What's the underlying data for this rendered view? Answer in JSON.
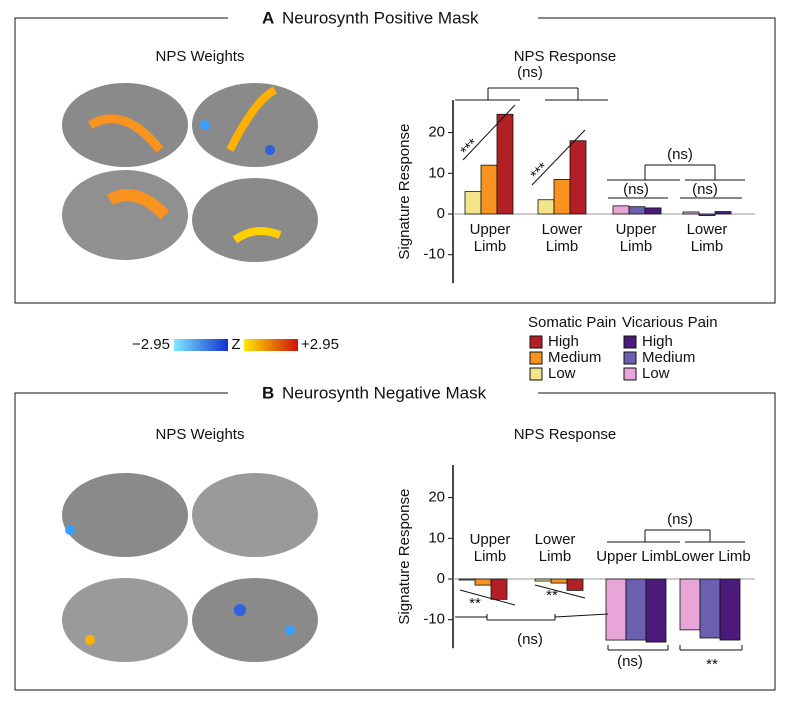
{
  "panels": [
    {
      "letter": "A",
      "title": "Neurosynth Positive Mask",
      "weights_title": "NPS Weights",
      "response_title": "NPS Response"
    },
    {
      "letter": "B",
      "title": "Neurosynth Negative Mask",
      "weights_title": "NPS Weights",
      "response_title": "NPS Response"
    }
  ],
  "colorbar": {
    "min_label": "−2.95",
    "z_label": "Z",
    "max_label": "+2.95"
  },
  "legend": [
    {
      "title": "Somatic Pain",
      "items": [
        {
          "label": "High",
          "color": "#b22025"
        },
        {
          "label": "Medium",
          "color": "#f7931e"
        },
        {
          "label": "Low",
          "color": "#f2e58a"
        }
      ]
    },
    {
      "title": "Vicarious Pain",
      "items": [
        {
          "label": "High",
          "color": "#4b1a7a"
        },
        {
          "label": "Medium",
          "color": "#6b5fb0"
        },
        {
          "label": "Low",
          "color": "#e8a6d8"
        }
      ]
    }
  ],
  "chart_data": [
    {
      "type": "bar",
      "ylabel": "Signature Response",
      "ylim": [
        -17,
        28
      ],
      "yticks": [
        -10,
        0,
        10,
        20
      ],
      "categories": [
        [
          "Upper",
          "Limb"
        ],
        [
          "Lower",
          "Limb"
        ],
        [
          "Upper",
          "Limb"
        ],
        [
          "Lower",
          "Limb"
        ]
      ],
      "series": [
        {
          "color": "#f2e58a",
          "values": [
            5.5,
            3.5,
            null,
            null
          ]
        },
        {
          "color": "#f7931e",
          "values": [
            12,
            8.5,
            null,
            null
          ]
        },
        {
          "color": "#b22025",
          "values": [
            24.5,
            18,
            null,
            null
          ]
        },
        {
          "color": "#e8a6d8",
          "values": [
            null,
            null,
            2,
            0.5
          ]
        },
        {
          "color": "#6b5fb0",
          "values": [
            null,
            null,
            1.8,
            -0.4
          ]
        },
        {
          "color": "#4b1a7a",
          "values": [
            null,
            null,
            1.5,
            0.6
          ]
        }
      ],
      "annotations": [
        "(ns)",
        "***",
        "***",
        "(ns)",
        "(ns)",
        "(ns)"
      ]
    },
    {
      "type": "bar",
      "ylabel": "Signature Response",
      "ylim": [
        -17,
        28
      ],
      "yticks": [
        -10,
        0,
        10,
        20
      ],
      "categories": [
        [
          "Upper",
          "Limb"
        ],
        [
          "Lower",
          "Limb"
        ],
        [
          "Upper Limb"
        ],
        [
          "Lower Limb"
        ]
      ],
      "series": [
        {
          "color": "#f2e58a",
          "values": [
            0,
            -0.5,
            null,
            null
          ]
        },
        {
          "color": "#f7931e",
          "values": [
            -1.5,
            -1,
            null,
            null
          ]
        },
        {
          "color": "#b22025",
          "values": [
            -5,
            -2.8,
            null,
            null
          ]
        },
        {
          "color": "#e8a6d8",
          "values": [
            null,
            null,
            -15,
            -12.5
          ]
        },
        {
          "color": "#6b5fb0",
          "values": [
            null,
            null,
            -15,
            -14.5
          ]
        },
        {
          "color": "#4b1a7a",
          "values": [
            null,
            null,
            -15.5,
            -15
          ]
        }
      ],
      "annotations": [
        "(ns)",
        "**",
        "**",
        "(ns)",
        "(ns)",
        "**"
      ]
    }
  ]
}
